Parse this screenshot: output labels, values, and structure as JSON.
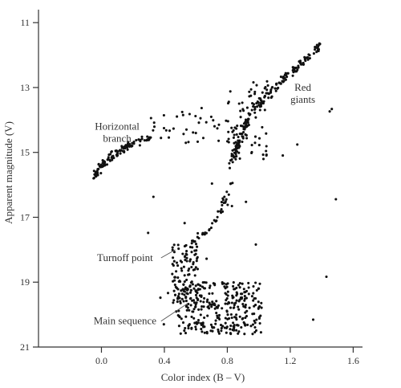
{
  "chart_data": {
    "type": "scatter",
    "title": "",
    "xlabel": "Color index (B – V)",
    "ylabel": "Apparent magnitude (V)",
    "xlim": [
      -0.4,
      1.7
    ],
    "ylim": [
      21,
      10.5
    ],
    "y_inverted": true,
    "grid": false,
    "x_ticks": [
      {
        "value": 0.0,
        "label": "0.0"
      },
      {
        "value": 0.4,
        "label": "0.4"
      },
      {
        "value": 0.8,
        "label": "0.8"
      },
      {
        "value": 1.2,
        "label": "1.2"
      },
      {
        "value": 1.6,
        "label": "1.6"
      }
    ],
    "y_ticks": [
      {
        "value": 11,
        "label": "11"
      },
      {
        "value": 13,
        "label": "13"
      },
      {
        "value": 15,
        "label": "15"
      },
      {
        "value": 17,
        "label": "17"
      },
      {
        "value": 19,
        "label": "19"
      },
      {
        "value": 21,
        "label": "21"
      }
    ],
    "annotations": [
      {
        "text_lines": [
          "Horizontal",
          "branch"
        ],
        "x": 0.1,
        "y": 14.3
      },
      {
        "text_lines": [
          "Red",
          "giants"
        ],
        "x": 1.28,
        "y": 13.1
      },
      {
        "text_lines": [
          "Turnoff point"
        ],
        "x": 0.15,
        "y": 18.35,
        "arrow_to": [
          0.47,
          18.0
        ]
      },
      {
        "text_lines": [
          "Main sequence"
        ],
        "x": 0.15,
        "y": 20.3,
        "arrow_to": [
          0.55,
          19.65
        ]
      }
    ],
    "regions": [
      {
        "name": "main-sequence",
        "n": 300,
        "x": [
          0.48,
          1.02
        ],
        "y": [
          19.0,
          20.6
        ]
      },
      {
        "name": "turnoff",
        "n": 110,
        "x": [
          0.45,
          0.62
        ],
        "y": [
          17.8,
          19.8
        ]
      },
      {
        "name": "subgiant-branch",
        "n": 40,
        "path": [
          [
            0.58,
            17.7
          ],
          [
            0.7,
            17.3
          ],
          [
            0.78,
            16.6
          ],
          [
            0.82,
            15.9
          ]
        ]
      },
      {
        "name": "red-giant-branch",
        "n": 180,
        "path": [
          [
            0.82,
            15.4
          ],
          [
            0.88,
            14.6
          ],
          [
            0.94,
            13.9
          ],
          [
            1.02,
            13.4
          ],
          [
            1.12,
            12.9
          ],
          [
            1.26,
            12.3
          ],
          [
            1.39,
            11.7
          ]
        ]
      },
      {
        "name": "red-giant-core",
        "n": 70,
        "x": [
          0.8,
          1.06
        ],
        "y": [
          12.8,
          15.3
        ]
      },
      {
        "name": "horizontal-branch",
        "n": 110,
        "path": [
          [
            -0.05,
            15.8
          ],
          [
            0.0,
            15.4
          ],
          [
            0.07,
            15.1
          ],
          [
            0.15,
            14.85
          ],
          [
            0.22,
            14.7
          ],
          [
            0.32,
            14.5
          ]
        ]
      },
      {
        "name": "asymptotic-branch",
        "n": 40,
        "x": [
          0.3,
          0.9
        ],
        "y": [
          13.6,
          14.7
        ]
      },
      {
        "name": "field-stars",
        "n": 28,
        "x": [
          0.28,
          1.55
        ],
        "y": [
          13.4,
          20.5
        ]
      }
    ],
    "point_color": "#111111"
  }
}
